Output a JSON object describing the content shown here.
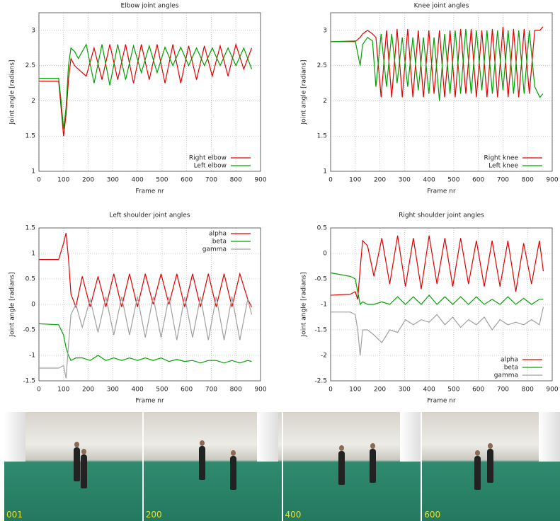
{
  "chart_data": [
    {
      "type": "line",
      "title": "Elbow joint angles",
      "xlabel": "Frame nr",
      "ylabel": "Joint angle [radians]",
      "grid": true,
      "legend": "lower right",
      "xlim": [
        0,
        900
      ],
      "xticks": [
        0,
        100,
        200,
        300,
        400,
        500,
        600,
        700,
        800,
        900
      ],
      "ylim": [
        1,
        3.25
      ],
      "yticks": [
        1,
        1.5,
        2,
        2.5,
        3
      ],
      "x": [
        0,
        80,
        90,
        100,
        110,
        120,
        130,
        145,
        160,
        192,
        224,
        256,
        288,
        320,
        352,
        384,
        416,
        448,
        480,
        512,
        544,
        576,
        608,
        640,
        672,
        704,
        736,
        768,
        800,
        832,
        864
      ],
      "series": [
        {
          "name": "Right elbow",
          "color": "#e00000",
          "values": [
            2.28,
            2.28,
            1.9,
            1.5,
            1.8,
            2.3,
            2.6,
            2.5,
            2.45,
            2.35,
            2.75,
            2.3,
            2.8,
            2.3,
            2.8,
            2.25,
            2.8,
            2.3,
            2.8,
            2.25,
            2.8,
            2.25,
            2.78,
            2.3,
            2.78,
            2.35,
            2.78,
            2.35,
            2.8,
            2.45,
            2.75
          ]
        },
        {
          "name": "Left elbow",
          "color": "#00a000",
          "values": [
            2.32,
            2.32,
            2.0,
            1.6,
            1.9,
            2.5,
            2.75,
            2.7,
            2.6,
            2.8,
            2.25,
            2.8,
            2.22,
            2.8,
            2.3,
            2.78,
            2.4,
            2.78,
            2.4,
            2.76,
            2.5,
            2.76,
            2.5,
            2.75,
            2.5,
            2.75,
            2.5,
            2.75,
            2.5,
            2.75,
            2.45
          ]
        }
      ]
    },
    {
      "type": "line",
      "title": "Knee joint angles",
      "xlabel": "Frame nr",
      "ylabel": "Joint angle [radians]",
      "grid": true,
      "legend": "lower right",
      "xlim": [
        0,
        900
      ],
      "xticks": [
        0,
        100,
        200,
        300,
        400,
        500,
        600,
        700,
        800,
        900
      ],
      "ylim": [
        1,
        3.25
      ],
      "yticks": [
        1,
        1.5,
        2,
        2.5,
        3
      ],
      "x": [
        0,
        100,
        120,
        130,
        150,
        170,
        184,
        205,
        227,
        248,
        270,
        291,
        313,
        334,
        356,
        377,
        399,
        420,
        442,
        463,
        485,
        506,
        528,
        549,
        571,
        592,
        614,
        635,
        657,
        678,
        700,
        721,
        743,
        764,
        786,
        807,
        829,
        850,
        862
      ],
      "series": [
        {
          "name": "Right knee",
          "color": "#e00000",
          "values": [
            2.84,
            2.84,
            2.9,
            2.95,
            3.0,
            2.95,
            2.9,
            2.05,
            3.0,
            2.05,
            3.02,
            2.05,
            3.02,
            2.05,
            3.0,
            2.05,
            3.0,
            2.1,
            3.0,
            2.05,
            3.0,
            2.05,
            3.02,
            2.1,
            3.02,
            2.05,
            3.0,
            2.05,
            3.02,
            2.05,
            3.05,
            2.05,
            3.02,
            2.05,
            3.02,
            2.1,
            3.0,
            3.0,
            3.05
          ]
        },
        {
          "name": "Left knee",
          "color": "#00a000",
          "values": [
            2.84,
            2.85,
            2.5,
            2.8,
            2.9,
            2.85,
            2.2,
            2.95,
            2.2,
            2.95,
            2.25,
            2.9,
            2.2,
            2.9,
            2.15,
            2.9,
            2.1,
            2.9,
            2.0,
            2.95,
            2.1,
            3.0,
            2.1,
            3.02,
            2.1,
            3.0,
            2.15,
            3.0,
            2.1,
            3.0,
            2.15,
            3.0,
            2.1,
            3.0,
            2.1,
            3.0,
            2.2,
            2.05,
            2.1
          ]
        }
      ]
    },
    {
      "type": "line",
      "title": "Left shoulder joint angles",
      "xlabel": "Frame nr",
      "ylabel": "Joint angle [radians]",
      "grid": true,
      "legend": "upper right",
      "xlim": [
        0,
        900
      ],
      "xticks": [
        0,
        100,
        200,
        300,
        400,
        500,
        600,
        700,
        800,
        900
      ],
      "ylim": [
        -1.5,
        1.5
      ],
      "yticks": [
        -1.5,
        -1,
        -0.5,
        0,
        0.5,
        1,
        1.5
      ],
      "x": [
        0,
        80,
        100,
        110,
        120,
        130,
        150,
        176,
        208,
        240,
        272,
        304,
        336,
        368,
        400,
        432,
        464,
        496,
        528,
        560,
        592,
        624,
        656,
        688,
        720,
        752,
        784,
        816,
        848,
        864
      ],
      "series": [
        {
          "name": "alpha",
          "color": "#e00000",
          "values": [
            0.88,
            0.88,
            1.2,
            1.4,
            0.9,
            0.2,
            -0.05,
            0.55,
            -0.05,
            0.55,
            -0.05,
            0.6,
            -0.05,
            0.6,
            -0.05,
            0.6,
            0,
            0.6,
            0,
            0.6,
            -0.05,
            0.6,
            -0.05,
            0.6,
            -0.05,
            0.6,
            -0.05,
            0.6,
            0.1,
            -0.05
          ]
        },
        {
          "name": "beta",
          "color": "#00a000",
          "values": [
            -0.38,
            -0.4,
            -0.6,
            -0.85,
            -1.0,
            -1.1,
            -1.05,
            -1.05,
            -1.1,
            -1.0,
            -1.1,
            -1.05,
            -1.1,
            -1.05,
            -1.1,
            -1.05,
            -1.1,
            -1.05,
            -1.12,
            -1.08,
            -1.12,
            -1.1,
            -1.15,
            -1.1,
            -1.1,
            -1.15,
            -1.1,
            -1.15,
            -1.1,
            -1.12
          ]
        },
        {
          "name": "gamma",
          "color": "#a0a0a0",
          "values": [
            -1.25,
            -1.25,
            -1.2,
            -1.45,
            -0.8,
            -0.2,
            0.0,
            -0.45,
            0.1,
            -0.55,
            0.15,
            -0.6,
            0.15,
            -0.6,
            0.15,
            -0.65,
            0.15,
            -0.65,
            0.15,
            -0.7,
            0.15,
            -0.65,
            0.15,
            -0.7,
            0.15,
            -0.7,
            0.15,
            -0.7,
            0.1,
            -0.2
          ]
        }
      ]
    },
    {
      "type": "line",
      "title": "Right shoulder joint angles",
      "xlabel": "Frame nr",
      "ylabel": "Joint angle [radians]",
      "grid": true,
      "legend": "lower right",
      "xlim": [
        0,
        900
      ],
      "xticks": [
        0,
        100,
        200,
        300,
        400,
        500,
        600,
        700,
        800,
        900
      ],
      "ylim": [
        -2.5,
        0.5
      ],
      "yticks": [
        -2.5,
        -2,
        -1.5,
        -1,
        -0.5,
        0,
        0.5
      ],
      "x": [
        0,
        80,
        100,
        110,
        120,
        130,
        150,
        176,
        208,
        240,
        272,
        304,
        336,
        368,
        400,
        432,
        464,
        496,
        528,
        560,
        592,
        624,
        656,
        688,
        720,
        752,
        784,
        816,
        848,
        864
      ],
      "series": [
        {
          "name": "alpha",
          "color": "#e00000",
          "values": [
            -0.82,
            -0.8,
            -0.75,
            -0.9,
            -0.3,
            0.25,
            0.15,
            -0.45,
            0.3,
            -0.6,
            0.35,
            -0.65,
            0.3,
            -0.7,
            0.35,
            -0.6,
            0.3,
            -0.65,
            0.3,
            -0.6,
            0.25,
            -0.65,
            0.25,
            -0.65,
            0.25,
            -0.75,
            0.2,
            -0.6,
            0.25,
            -0.35
          ]
        },
        {
          "name": "beta",
          "color": "#00a000",
          "values": [
            -0.38,
            -0.45,
            -0.5,
            -0.75,
            -1.0,
            -0.95,
            -1.0,
            -1.0,
            -0.95,
            -1.0,
            -0.85,
            -1.0,
            -0.85,
            -1.0,
            -0.82,
            -1.0,
            -0.85,
            -1.0,
            -0.85,
            -1.0,
            -0.85,
            -1.0,
            -0.9,
            -1.0,
            -0.85,
            -1.0,
            -0.88,
            -1.0,
            -0.9,
            -0.9
          ]
        },
        {
          "name": "gamma",
          "color": "#a0a0a0",
          "values": [
            -1.15,
            -1.15,
            -1.2,
            -1.5,
            -2.0,
            -1.5,
            -1.5,
            -1.6,
            -1.75,
            -1.5,
            -1.55,
            -1.3,
            -1.4,
            -1.3,
            -1.35,
            -1.2,
            -1.4,
            -1.25,
            -1.45,
            -1.3,
            -1.4,
            -1.25,
            -1.5,
            -1.3,
            -1.4,
            -1.35,
            -1.4,
            -1.3,
            -1.4,
            -1.05
          ]
        }
      ]
    }
  ],
  "frames": [
    "001",
    "200",
    "400",
    "600"
  ]
}
